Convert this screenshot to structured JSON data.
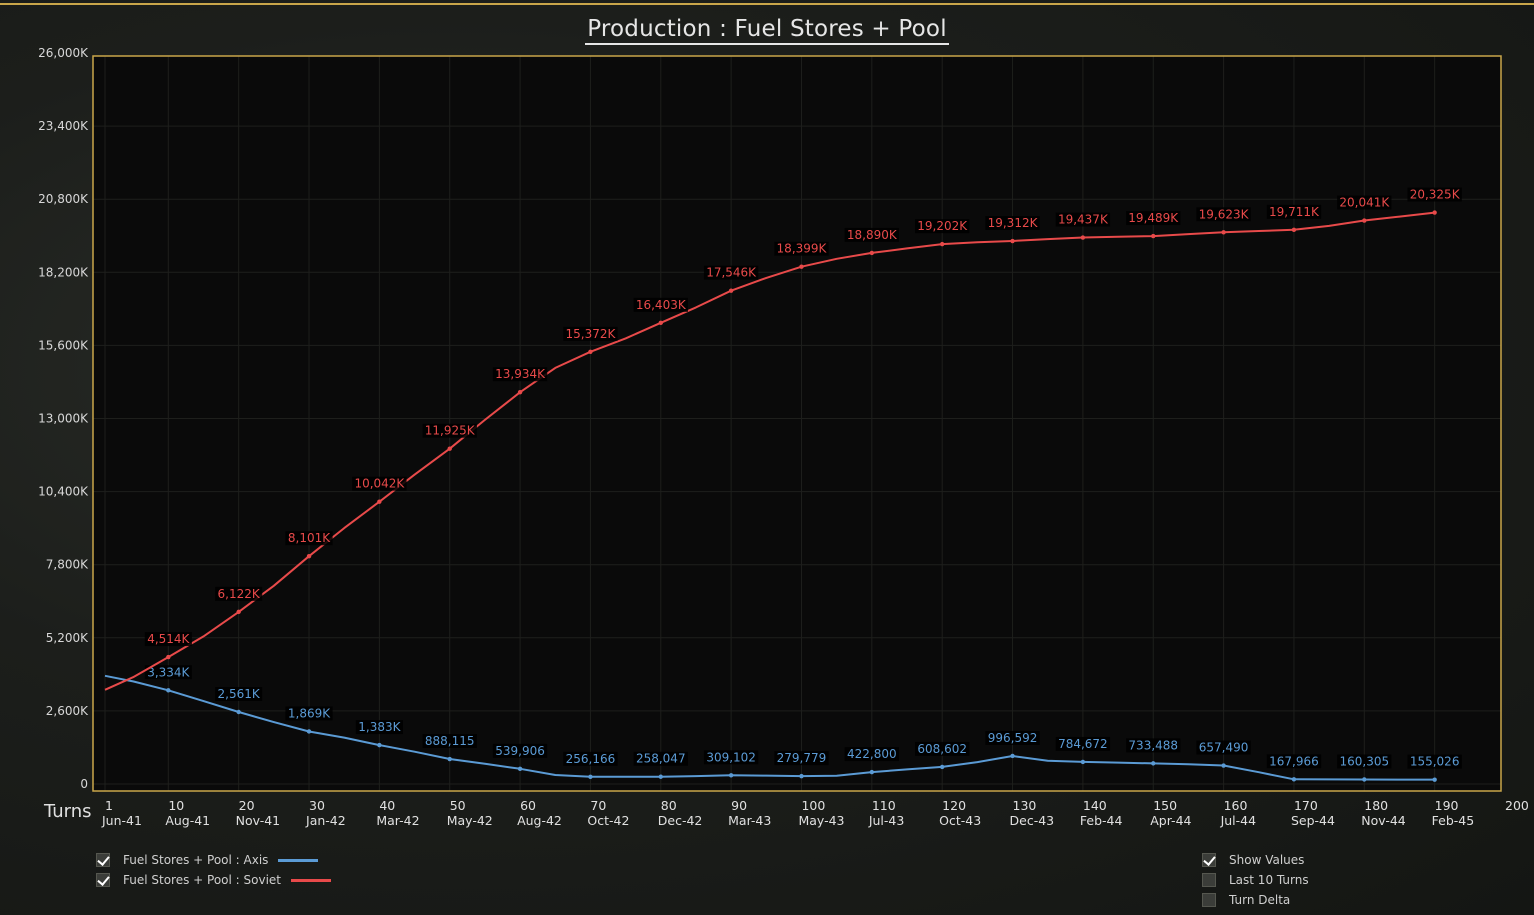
{
  "title": "Production : Fuel Stores + Pool",
  "x_axis_label": "Turns",
  "legend": [
    {
      "label": "Fuel Stores + Pool : Axis",
      "checked": true,
      "color": "#5b9bd5"
    },
    {
      "label": "Fuel Stores + Pool : Soviet",
      "checked": true,
      "color": "#e84a4a"
    }
  ],
  "options": [
    {
      "label": "Show Values",
      "checked": true
    },
    {
      "label": "Last 10 Turns",
      "checked": false
    },
    {
      "label": "Turn Delta",
      "checked": false
    }
  ],
  "colors": {
    "frame": "#c9a64a",
    "axis_series": "#5b9bd5",
    "soviet_series": "#e84a4a"
  },
  "chart_data": {
    "type": "line",
    "title": "Production : Fuel Stores + Pool",
    "xlabel": "Turns",
    "ylabel": "",
    "xlim": [
      1,
      200
    ],
    "ylim": [
      0,
      26000000
    ],
    "grid": true,
    "legend_position": "bottom-left",
    "y_ticks": [
      "0",
      "2,600K",
      "5,200K",
      "7,800K",
      "10,400K",
      "13,000K",
      "15,600K",
      "18,200K",
      "20,800K",
      "23,400K",
      "26,000K"
    ],
    "x_ticks": [
      {
        "turn": "1",
        "date": "Jun-41"
      },
      {
        "turn": "10",
        "date": "Aug-41"
      },
      {
        "turn": "20",
        "date": "Nov-41"
      },
      {
        "turn": "30",
        "date": "Jan-42"
      },
      {
        "turn": "40",
        "date": "Mar-42"
      },
      {
        "turn": "50",
        "date": "May-42"
      },
      {
        "turn": "60",
        "date": "Aug-42"
      },
      {
        "turn": "70",
        "date": "Oct-42"
      },
      {
        "turn": "80",
        "date": "Dec-42"
      },
      {
        "turn": "90",
        "date": "Mar-43"
      },
      {
        "turn": "100",
        "date": "May-43"
      },
      {
        "turn": "110",
        "date": "Jul-43"
      },
      {
        "turn": "120",
        "date": "Oct-43"
      },
      {
        "turn": "130",
        "date": "Dec-43"
      },
      {
        "turn": "140",
        "date": "Feb-44"
      },
      {
        "turn": "150",
        "date": "Apr-44"
      },
      {
        "turn": "160",
        "date": "Jul-44"
      },
      {
        "turn": "170",
        "date": "Sep-44"
      },
      {
        "turn": "180",
        "date": "Nov-44"
      },
      {
        "turn": "190",
        "date": "Feb-45"
      },
      {
        "turn": "200",
        "date": ""
      }
    ],
    "series": [
      {
        "name": "Fuel Stores + Pool : Axis",
        "color": "#5b9bd5",
        "x": [
          1,
          5,
          10,
          15,
          20,
          25,
          30,
          35,
          40,
          45,
          50,
          55,
          60,
          65,
          70,
          75,
          80,
          85,
          90,
          95,
          100,
          105,
          110,
          115,
          120,
          125,
          130,
          135,
          140,
          145,
          150,
          155,
          160,
          165,
          170,
          175,
          180,
          185,
          190
        ],
        "y": [
          3850000,
          3650000,
          3334000,
          2950000,
          2561000,
          2200000,
          1869000,
          1650000,
          1383000,
          1150000,
          888115,
          720000,
          539906,
          320000,
          256166,
          256000,
          258047,
          280000,
          309102,
          300000,
          279779,
          290000,
          422800,
          520000,
          608602,
          780000,
          996592,
          830000,
          784672,
          760000,
          733488,
          700000,
          657490,
          420000,
          167966,
          165000,
          160305,
          158000,
          155026
        ],
        "labels": [
          {
            "x": 10,
            "text": "3,334K"
          },
          {
            "x": 20,
            "text": "2,561K"
          },
          {
            "x": 30,
            "text": "1,869K"
          },
          {
            "x": 40,
            "text": "1,383K"
          },
          {
            "x": 50,
            "text": "888,115"
          },
          {
            "x": 60,
            "text": "539,906"
          },
          {
            "x": 70,
            "text": "256,166"
          },
          {
            "x": 80,
            "text": "258,047"
          },
          {
            "x": 90,
            "text": "309,102"
          },
          {
            "x": 100,
            "text": "279,779"
          },
          {
            "x": 110,
            "text": "422,800"
          },
          {
            "x": 120,
            "text": "608,602"
          },
          {
            "x": 130,
            "text": "996,592"
          },
          {
            "x": 140,
            "text": "784,672"
          },
          {
            "x": 150,
            "text": "733,488"
          },
          {
            "x": 160,
            "text": "657,490"
          },
          {
            "x": 170,
            "text": "167,966"
          },
          {
            "x": 180,
            "text": "160,305"
          },
          {
            "x": 190,
            "text": "155,026"
          }
        ]
      },
      {
        "name": "Fuel Stores + Pool : Soviet",
        "color": "#e84a4a",
        "x": [
          1,
          5,
          10,
          15,
          20,
          25,
          30,
          35,
          40,
          45,
          50,
          55,
          60,
          65,
          70,
          75,
          80,
          85,
          90,
          95,
          100,
          105,
          110,
          115,
          120,
          125,
          130,
          135,
          140,
          145,
          150,
          155,
          160,
          165,
          170,
          175,
          180,
          185,
          190
        ],
        "y": [
          3350000,
          3800000,
          4514000,
          5250000,
          6122000,
          7050000,
          8101000,
          9100000,
          10042000,
          11000000,
          11925000,
          12950000,
          13934000,
          14800000,
          15372000,
          15850000,
          16403000,
          16950000,
          17546000,
          18000000,
          18399000,
          18680000,
          18890000,
          19050000,
          19202000,
          19270000,
          19312000,
          19380000,
          19437000,
          19465000,
          19489000,
          19560000,
          19623000,
          19670000,
          19711000,
          19850000,
          20041000,
          20180000,
          20325000
        ],
        "labels": [
          {
            "x": 10,
            "text": "4,514K"
          },
          {
            "x": 20,
            "text": "6,122K"
          },
          {
            "x": 30,
            "text": "8,101K"
          },
          {
            "x": 40,
            "text": "10,042K"
          },
          {
            "x": 50,
            "text": "11,925K"
          },
          {
            "x": 60,
            "text": "13,934K"
          },
          {
            "x": 70,
            "text": "15,372K"
          },
          {
            "x": 80,
            "text": "16,403K"
          },
          {
            "x": 90,
            "text": "17,546K"
          },
          {
            "x": 100,
            "text": "18,399K"
          },
          {
            "x": 110,
            "text": "18,890K"
          },
          {
            "x": 120,
            "text": "19,202K"
          },
          {
            "x": 130,
            "text": "19,312K"
          },
          {
            "x": 140,
            "text": "19,437K"
          },
          {
            "x": 150,
            "text": "19,489K"
          },
          {
            "x": 160,
            "text": "19,623K"
          },
          {
            "x": 170,
            "text": "19,711K"
          },
          {
            "x": 180,
            "text": "20,041K"
          },
          {
            "x": 190,
            "text": "20,325K"
          }
        ]
      }
    ]
  }
}
